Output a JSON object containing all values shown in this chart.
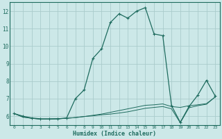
{
  "title": "",
  "xlabel": "Humidex (Indice chaleur)",
  "background_color": "#cce8e8",
  "grid_color": "#aacccc",
  "line_color": "#1e6b5e",
  "xlim": [
    -0.5,
    23.5
  ],
  "ylim": [
    5.5,
    12.5
  ],
  "xticks": [
    0,
    1,
    2,
    3,
    4,
    5,
    6,
    7,
    8,
    9,
    10,
    11,
    12,
    13,
    14,
    15,
    16,
    17,
    18,
    19,
    20,
    21,
    22,
    23
  ],
  "yticks": [
    6,
    7,
    8,
    9,
    10,
    11,
    12
  ],
  "line1_x": [
    0,
    1,
    2,
    3,
    4,
    5,
    6,
    7,
    8,
    9,
    10,
    11,
    12,
    13,
    14,
    15,
    16,
    17,
    18,
    19,
    20,
    21,
    22,
    23
  ],
  "line1_y": [
    6.15,
    6.0,
    5.9,
    5.85,
    5.85,
    5.85,
    5.9,
    7.0,
    7.5,
    9.3,
    9.85,
    11.35,
    11.85,
    11.6,
    12.0,
    12.2,
    10.7,
    10.6,
    6.6,
    5.65,
    6.55,
    7.2,
    8.05,
    7.15
  ],
  "line2_x": [
    0,
    1,
    2,
    3,
    4,
    5,
    6,
    7,
    8,
    9,
    10,
    11,
    12,
    13,
    14,
    15,
    16,
    17,
    18,
    19,
    20,
    21,
    22,
    23
  ],
  "line2_y": [
    6.15,
    5.95,
    5.88,
    5.83,
    5.83,
    5.85,
    5.88,
    5.92,
    5.98,
    6.05,
    6.12,
    6.22,
    6.32,
    6.42,
    6.52,
    6.62,
    6.65,
    6.7,
    6.55,
    6.5,
    6.6,
    6.65,
    6.72,
    7.1
  ],
  "line3_x": [
    0,
    1,
    2,
    3,
    4,
    5,
    6,
    7,
    8,
    9,
    10,
    11,
    12,
    13,
    14,
    15,
    16,
    17,
    18,
    19,
    20,
    21,
    22,
    23
  ],
  "line3_y": [
    6.15,
    5.95,
    5.88,
    5.83,
    5.83,
    5.85,
    5.88,
    5.92,
    5.98,
    6.02,
    6.08,
    6.12,
    6.18,
    6.25,
    6.35,
    6.45,
    6.5,
    6.55,
    6.42,
    5.62,
    6.48,
    6.6,
    6.68,
    7.1
  ]
}
